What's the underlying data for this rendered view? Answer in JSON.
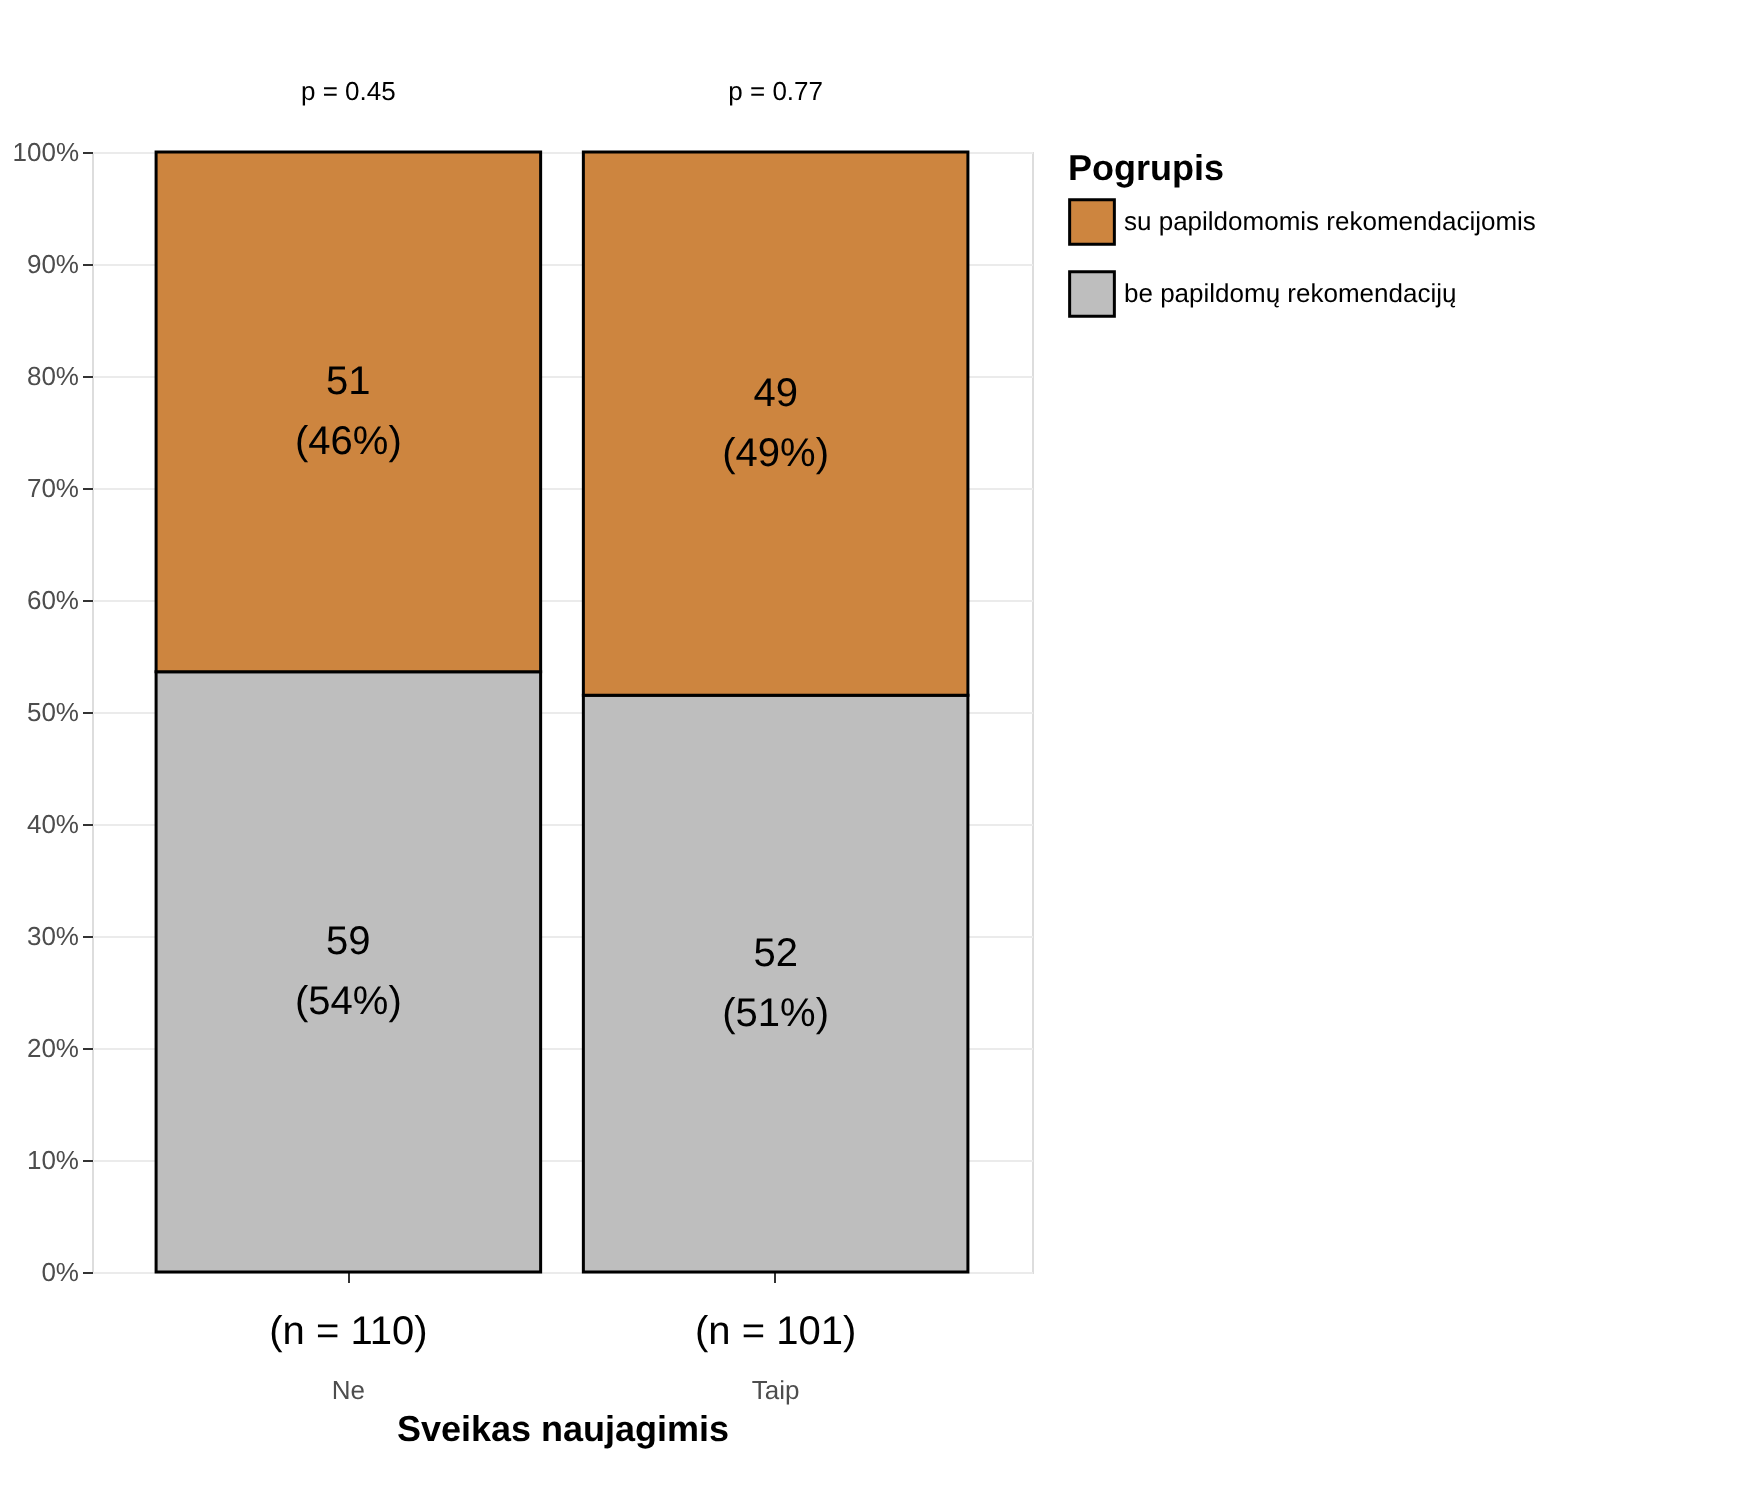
{
  "chart_data": {
    "type": "bar",
    "stacked": true,
    "xlabel": "Sveikas naujagimis",
    "legend_title": "Pogrupis",
    "categories": [
      "Ne",
      "Taip"
    ],
    "series": [
      {
        "name": "be papildomų rekomendacijų",
        "color": "#bebebe",
        "values": [
          53.6,
          51.5
        ],
        "value_labels": [
          "59\n(54%)",
          "52\n(51%)"
        ]
      },
      {
        "name": "su papildomomis rekomendacijomis",
        "color": "#cd853f",
        "values": [
          46.4,
          48.5
        ],
        "value_labels": [
          "51\n(46%)",
          "49\n(49%)"
        ]
      }
    ],
    "ylim": [
      0,
      100
    ],
    "yticks": [
      {
        "value": 0,
        "label": "0%"
      },
      {
        "value": 10,
        "label": "10%"
      },
      {
        "value": 20,
        "label": "20%"
      },
      {
        "value": 30,
        "label": "30%"
      },
      {
        "value": 40,
        "label": "40%"
      },
      {
        "value": 50,
        "label": "50%"
      },
      {
        "value": 60,
        "label": "60%"
      },
      {
        "value": 70,
        "label": "70%"
      },
      {
        "value": 80,
        "label": "80%"
      },
      {
        "value": 90,
        "label": "90%"
      },
      {
        "value": 100,
        "label": "100%"
      }
    ],
    "annotations": [
      {
        "text": "p = 0.45",
        "x": "Ne",
        "y": 100
      },
      {
        "text": "p = 0.77",
        "x": "Taip",
        "y": 100
      },
      {
        "text": "(n = 110)",
        "x": "Ne",
        "y": 0
      },
      {
        "text": "(n = 101)",
        "x": "Taip",
        "y": 0
      }
    ],
    "grid": "y",
    "legend": "right"
  }
}
